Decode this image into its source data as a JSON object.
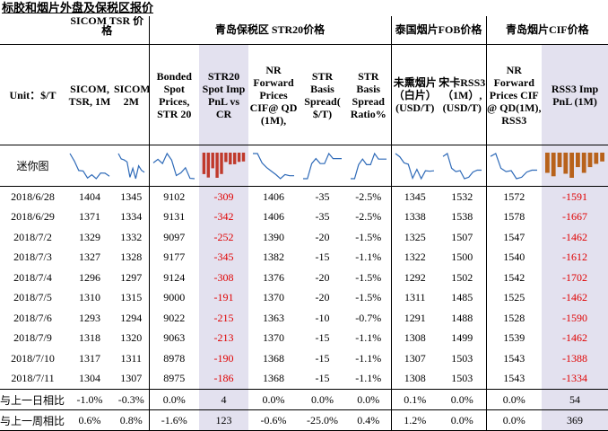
{
  "title": "标胶和烟片外盘及保税区报价",
  "groups": [
    "SICOM TSR 价格",
    "青岛保税区 STR20价格",
    "泰国烟片FOB价格",
    "青岛烟片CIF价格"
  ],
  "unit_label": "Unit：$/T",
  "headers": [
    "SICOM, TSR, 1M",
    "SICOM,TSR, 2M",
    "Bonded Spot Prices, STR 20",
    "STR20 Spot Imp PnL vs CR",
    "NR Forward Prices CIF@ QD (1M),",
    "STR Basis Spread( $/T)",
    "STR Basis Spread Ratio%",
    "未熏烟片（白片）(USD/T)",
    "宋卡RSS3（1M）,(USD/T)",
    "NR Forward Prices CIF @ QD(1M), RSS3",
    "RSS3 Imp PnL (1M)"
  ],
  "mini_label": "迷你图",
  "dates": [
    "2018/6/28",
    "2018/6/29",
    "2018/7/2",
    "2018/7/3",
    "2018/7/4",
    "2018/7/5",
    "2018/7/6",
    "2018/7/9",
    "2018/7/10",
    "2018/7/11"
  ],
  "rows": [
    [
      "1404",
      "1345",
      "9102",
      "-309",
      "1406",
      "-35",
      "-2.5%",
      "1345",
      "1532",
      "1572",
      "-1591"
    ],
    [
      "1371",
      "1334",
      "9131",
      "-342",
      "1406",
      "-35",
      "-2.5%",
      "1338",
      "1538",
      "1578",
      "-1667"
    ],
    [
      "1329",
      "1332",
      "9097",
      "-252",
      "1390",
      "-20",
      "-1.5%",
      "1325",
      "1507",
      "1547",
      "-1462"
    ],
    [
      "1327",
      "1328",
      "9177",
      "-345",
      "1382",
      "-15",
      "-1.1%",
      "1322",
      "1500",
      "1540",
      "-1612"
    ],
    [
      "1296",
      "1297",
      "9124",
      "-308",
      "1376",
      "-20",
      "-1.5%",
      "1292",
      "1502",
      "1542",
      "-1702"
    ],
    [
      "1310",
      "1315",
      "9000",
      "-191",
      "1370",
      "-20",
      "-1.5%",
      "1311",
      "1485",
      "1525",
      "-1462"
    ],
    [
      "1293",
      "1294",
      "9022",
      "-215",
      "1363",
      "-10",
      "-0.7%",
      "1291",
      "1488",
      "1528",
      "-1590"
    ],
    [
      "1318",
      "1320",
      "9063",
      "-213",
      "1370",
      "-15",
      "-1.1%",
      "1308",
      "1499",
      "1539",
      "-1462"
    ],
    [
      "1317",
      "1311",
      "8978",
      "-190",
      "1368",
      "-15",
      "-1.1%",
      "1307",
      "1503",
      "1543",
      "-1388"
    ],
    [
      "1304",
      "1307",
      "8975",
      "-186",
      "1368",
      "-15",
      "-1.1%",
      "1308",
      "1503",
      "1543",
      "-1334"
    ]
  ],
  "cmp_rows": [
    {
      "label": "与上一日相比",
      "values": [
        "-1.0%",
        "-0.3%",
        "0.0%",
        "4",
        "0.0%",
        "0.0%",
        "0.0%",
        "0.1%",
        "0.0%",
        "0.0%",
        "54"
      ]
    },
    {
      "label": "与上一周相比",
      "values": [
        "0.6%",
        "0.8%",
        "-1.6%",
        "123",
        "-0.6%",
        "-25.0%",
        "0.4%",
        "1.2%",
        "0.0%",
        "0.0%",
        "369"
      ]
    }
  ],
  "colors": {
    "negative": "#e00000",
    "highlight": "#e3e1ef",
    "spark_line": "#2e6ab8",
    "spark_bar": "#c0392b",
    "spark_bar2": "#b8621b"
  }
}
